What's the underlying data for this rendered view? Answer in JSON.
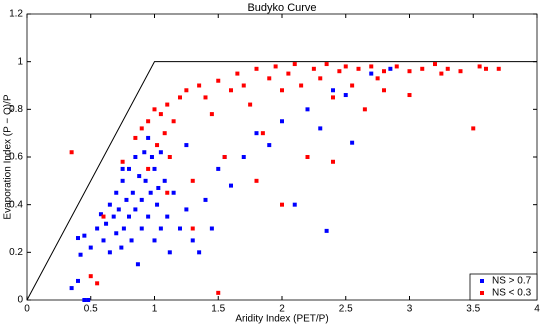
{
  "chart_data": {
    "type": "scatter",
    "title": "Budyko Curve",
    "x_label": "Aridity Index (PET/P)",
    "y_label": "Evaporation Index (P − Q)/P",
    "xlim": [
      0,
      4
    ],
    "ylim": [
      0,
      1.2
    ],
    "xticks": [
      0,
      0.5,
      1,
      1.5,
      2,
      2.5,
      3,
      3.5,
      4
    ],
    "yticks": [
      0,
      0.2,
      0.4,
      0.6,
      0.8,
      1,
      1.2
    ],
    "legend": "lower right",
    "limit_line": {
      "x": [
        0,
        1,
        4
      ],
      "values": [
        0,
        1,
        1
      ],
      "color": "#000000"
    },
    "series": [
      {
        "name": "NS > 0.7",
        "color": "#0000ff",
        "x": [
          0.35,
          0.4,
          0.45,
          0.48,
          0.42,
          0.4,
          0.45,
          0.5,
          0.55,
          0.58,
          0.6,
          0.62,
          0.65,
          0.65,
          0.68,
          0.7,
          0.7,
          0.72,
          0.74,
          0.75,
          0.76,
          0.78,
          0.8,
          0.8,
          0.82,
          0.83,
          0.85,
          0.85,
          0.87,
          0.88,
          0.9,
          0.9,
          0.92,
          0.93,
          0.95,
          0.95,
          0.97,
          1.0,
          1.0,
          1.02,
          1.05,
          1.05,
          1.08,
          1.1,
          1.12,
          1.15,
          1.2,
          1.25,
          1.3,
          1.35,
          1.4,
          1.45,
          1.5,
          1.6,
          1.7,
          1.8,
          1.9,
          2.0,
          2.1,
          2.2,
          2.3,
          2.35,
          2.4,
          2.5,
          2.55,
          2.7,
          2.85,
          0.98,
          1.03,
          0.75,
          1.55,
          1.25
        ],
        "values": [
          0.05,
          0.08,
          0.0,
          0.0,
          0.19,
          0.26,
          0.27,
          0.22,
          0.3,
          0.36,
          0.25,
          0.32,
          0.2,
          0.4,
          0.35,
          0.28,
          0.45,
          0.38,
          0.22,
          0.5,
          0.3,
          0.42,
          0.35,
          0.55,
          0.25,
          0.45,
          0.6,
          0.38,
          0.15,
          0.52,
          0.42,
          0.3,
          0.62,
          0.5,
          0.35,
          0.68,
          0.45,
          0.55,
          0.25,
          0.4,
          0.62,
          0.3,
          0.5,
          0.35,
          0.2,
          0.45,
          0.3,
          0.38,
          0.25,
          0.2,
          0.42,
          0.3,
          0.55,
          0.48,
          0.6,
          0.7,
          0.65,
          0.75,
          0.4,
          0.8,
          0.72,
          0.29,
          0.88,
          0.86,
          0.66,
          0.95,
          0.97,
          0.6,
          0.47,
          0.55,
          0.6,
          0.65
        ]
      },
      {
        "name": "NS < 0.3",
        "color": "#ff0000",
        "x": [
          0.35,
          0.5,
          0.55,
          0.6,
          0.75,
          0.85,
          0.9,
          0.95,
          1.0,
          1.02,
          1.05,
          1.08,
          1.1,
          1.12,
          1.15,
          1.2,
          1.25,
          1.3,
          1.35,
          1.4,
          1.45,
          1.5,
          1.55,
          1.6,
          1.65,
          1.7,
          1.75,
          1.8,
          1.85,
          1.9,
          1.95,
          2.0,
          2.05,
          2.1,
          2.15,
          2.2,
          2.25,
          2.3,
          2.35,
          2.4,
          2.45,
          2.5,
          2.55,
          2.6,
          2.65,
          2.7,
          2.75,
          2.8,
          2.9,
          3.0,
          3.1,
          3.2,
          3.25,
          3.3,
          3.4,
          3.5,
          3.55,
          3.6,
          3.7,
          1.5,
          1.3,
          1.8,
          2.4,
          2.0,
          1.1,
          0.95,
          2.8,
          3.0
        ],
        "values": [
          0.62,
          0.1,
          0.07,
          0.35,
          0.58,
          0.68,
          0.72,
          0.75,
          0.8,
          0.65,
          0.78,
          0.7,
          0.82,
          0.6,
          0.75,
          0.85,
          0.88,
          0.5,
          0.9,
          0.85,
          0.78,
          0.92,
          0.6,
          0.88,
          0.95,
          0.9,
          0.82,
          0.97,
          0.7,
          0.93,
          0.98,
          0.88,
          0.95,
          0.99,
          0.9,
          0.6,
          0.97,
          0.93,
          0.99,
          0.85,
          0.96,
          0.98,
          0.9,
          0.97,
          0.8,
          0.98,
          0.93,
          0.96,
          0.98,
          0.86,
          0.97,
          0.99,
          0.95,
          0.97,
          0.96,
          0.72,
          0.98,
          0.97,
          0.97,
          0.03,
          0.3,
          0.5,
          0.58,
          0.4,
          0.45,
          0.55,
          0.88,
          0.96
        ]
      }
    ]
  }
}
